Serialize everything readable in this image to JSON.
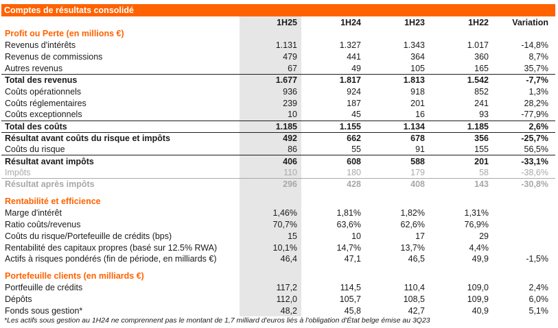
{
  "title": "Comptes de résultats consolidé",
  "columns": [
    "1H25",
    "1H24",
    "1H23",
    "1H22",
    "Variation"
  ],
  "sections": [
    {
      "heading": "Profit ou Perte (en millions €)",
      "rows": [
        {
          "label": "Revenus d'intérêts",
          "values": [
            "1.131",
            "1.327",
            "1.343",
            "1.017",
            "-14,8%"
          ],
          "style": "normal"
        },
        {
          "label": "Revenus de commissions",
          "values": [
            "479",
            "441",
            "364",
            "360",
            "8,7%"
          ],
          "style": "normal"
        },
        {
          "label": "Autres revenus",
          "values": [
            "67",
            "49",
            "105",
            "165",
            "35,7%"
          ],
          "style": "normal"
        },
        {
          "label": "Total des revenus",
          "values": [
            "1.677",
            "1.817",
            "1.813",
            "1.542",
            "-7,7%"
          ],
          "style": "bold"
        },
        {
          "label": "Coûts opérationnels",
          "values": [
            "936",
            "924",
            "918",
            "852",
            "1,3%"
          ],
          "style": "normal"
        },
        {
          "label": "Coûts réglementaires",
          "values": [
            "239",
            "187",
            "201",
            "241",
            "28,2%"
          ],
          "style": "normal"
        },
        {
          "label": "Coûts exceptionnels",
          "values": [
            "10",
            "45",
            "16",
            "93",
            "-77,9%"
          ],
          "style": "normal"
        },
        {
          "label": "Total des coûts",
          "values": [
            "1.185",
            "1.155",
            "1.134",
            "1.185",
            "2,6%"
          ],
          "style": "bold"
        },
        {
          "label": "Résultat avant coûts du risque et impôts",
          "values": [
            "492",
            "662",
            "678",
            "356",
            "-25,7%"
          ],
          "style": "bold"
        },
        {
          "label": "Coûts du risque",
          "values": [
            "86",
            "55",
            "91",
            "155",
            "56,5%"
          ],
          "style": "normal"
        },
        {
          "label": "Résultat avant impôts",
          "values": [
            "406",
            "608",
            "588",
            "201",
            "-33,1%"
          ],
          "style": "bold"
        },
        {
          "label": "Impôts",
          "values": [
            "110",
            "180",
            "179",
            "58",
            "-38,6%"
          ],
          "style": "grey"
        },
        {
          "label": "Résultat après impôts",
          "values": [
            "296",
            "428",
            "408",
            "143",
            "-30,8%"
          ],
          "style": "grey-bold"
        }
      ]
    },
    {
      "heading": "Rentabilité et efficience",
      "rows": [
        {
          "label": "Marge d'intérêt",
          "values": [
            "1,46%",
            "1,81%",
            "1,82%",
            "1,31%",
            ""
          ],
          "style": "normal"
        },
        {
          "label": "Ratio coûts/revenus",
          "values": [
            "70,7%",
            "63,6%",
            "62,6%",
            "76,9%",
            ""
          ],
          "style": "normal"
        },
        {
          "label": "Coûts du risque/Portefeuille de crédits (bps)",
          "values": [
            "15",
            "10",
            "17",
            "29",
            ""
          ],
          "style": "normal"
        },
        {
          "label": "Rentabilité des capitaux propres (basé sur 12.5% RWA)",
          "values": [
            "10,1%",
            "14,7%",
            "13,7%",
            "4,4%",
            ""
          ],
          "style": "normal"
        },
        {
          "label": "Actifs à risques pondérés (fin de période, en milliards €)",
          "values": [
            "46,4",
            "47,1",
            "46,5",
            "49,9",
            "-1,5%"
          ],
          "style": "normal"
        }
      ]
    },
    {
      "heading": "Portefeuille clients (en milliards €)",
      "rows": [
        {
          "label": "Portfeuille de crédits",
          "values": [
            "117,2",
            "114,5",
            "110,4",
            "109,0",
            "2,4%"
          ],
          "style": "normal"
        },
        {
          "label": "Dépôts",
          "values": [
            "112,0",
            "105,7",
            "108,5",
            "109,9",
            "6,0%"
          ],
          "style": "normal"
        },
        {
          "label": "Fonds sous gestion*",
          "values": [
            "48,2",
            "45,8",
            "42,7",
            "40,9",
            "5,1%"
          ],
          "style": "normal"
        }
      ]
    }
  ],
  "footnote": "*Les actifs sous gestion au 1H24 ne comprennent pas le montant de 1,7 milliard d'euros liés à l'obligation d'État belge émise au 3Q23",
  "colors": {
    "accent": "#ff6200",
    "shade": "#e6e6e6",
    "muted": "#a8a8a8",
    "text": "#1a1a1a"
  }
}
